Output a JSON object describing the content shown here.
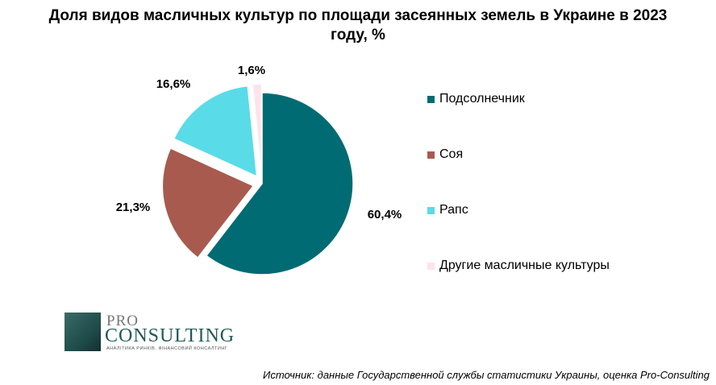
{
  "chart_data": {
    "type": "pie",
    "title": "Доля видов масличных культур по площади засеянных земель в Украине в 2023 году, %",
    "slices": [
      {
        "name": "Подсолнечник",
        "value": 60.4,
        "label": "60,4%",
        "color": "#006b72"
      },
      {
        "name": "Соя",
        "value": 21.3,
        "label": "21,3%",
        "color": "#a85a4e"
      },
      {
        "name": "Рапс",
        "value": 16.6,
        "label": "16,6%",
        "color": "#5adbe8"
      },
      {
        "name": "Другие масличные культуры",
        "value": 1.6,
        "label": "1,6%",
        "color": "#fde3ec"
      }
    ],
    "legend_position": "right",
    "exploded": true
  },
  "logo": {
    "pro": "PRO",
    "consulting": "CONSULTING",
    "tagline": "АНАЛІТИКА РИНКІВ. ФІНАНСОВИЙ КОНСАЛТИНГ"
  },
  "source": "Источник: данные Государственной службы статистики Украины, оценка Pro-Consulting"
}
